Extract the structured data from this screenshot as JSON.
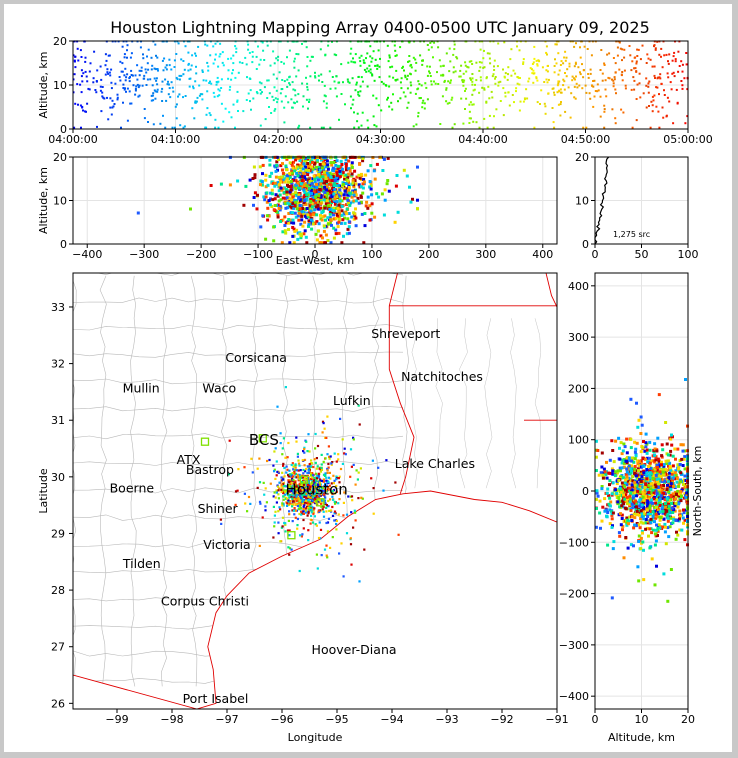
{
  "chart_data": [
    {
      "type": "scatter",
      "panel": "time-altitude",
      "title": "Houston Lightning Mapping Array 0400-0500 UTC January 09, 2025",
      "ylabel": "Altitude, km",
      "ylim": [
        0,
        20
      ],
      "yticks": [
        "0",
        "10",
        "20"
      ],
      "xlim_minutes": [
        0,
        60
      ],
      "xticks": [
        "04:00:00",
        "04:10:00",
        "04:20:00",
        "04:30:00",
        "04:40:00",
        "04:50:00",
        "05:00:00"
      ],
      "grid": true,
      "color_encoding": "time (blue to red)"
    },
    {
      "type": "scatter",
      "panel": "east-west-altitude",
      "xlabel": "East-West, km",
      "ylabel": "Altitude, km",
      "xlim": [
        -425,
        425
      ],
      "ylim": [
        0,
        20
      ],
      "xticks": [
        "−400",
        "−300",
        "−200",
        "−100",
        "0",
        "100",
        "200",
        "300",
        "400"
      ],
      "yticks": [
        "0",
        "10",
        "20"
      ],
      "grid": true
    },
    {
      "type": "line",
      "panel": "altitude-histogram",
      "xlim": [
        0,
        100
      ],
      "ylim": [
        0,
        20
      ],
      "xticks": [
        "0",
        "50",
        "100"
      ],
      "yticks": [
        "0",
        "10",
        "20"
      ],
      "annotation": "1,275 src",
      "profile": [
        [
          0.3,
          1
        ],
        [
          1,
          2
        ],
        [
          2,
          3
        ],
        [
          3,
          4
        ],
        [
          4,
          5
        ],
        [
          5,
          6
        ],
        [
          6,
          7
        ],
        [
          7,
          8
        ],
        [
          7,
          9
        ],
        [
          8,
          10
        ],
        [
          9,
          11
        ],
        [
          10,
          12
        ],
        [
          11,
          13
        ],
        [
          12,
          14
        ],
        [
          11,
          15
        ],
        [
          12,
          16
        ],
        [
          13,
          17
        ],
        [
          13,
          18
        ],
        [
          12,
          19
        ],
        [
          14,
          20
        ]
      ],
      "grid": true
    },
    {
      "type": "scatter",
      "panel": "plan-view",
      "xlabel": "Longitude",
      "ylabel": "Latitude",
      "xlim": [
        -99.8,
        -91.0
      ],
      "ylim": [
        25.9,
        33.6
      ],
      "xticks": [
        "−99",
        "−98",
        "−97",
        "−96",
        "−95",
        "−94",
        "−93",
        "−92",
        "−91"
      ],
      "yticks": [
        "26",
        "27",
        "28",
        "29",
        "30",
        "31",
        "32",
        "33"
      ],
      "cities": [
        {
          "name": "Shreveport",
          "lon": -93.75,
          "lat": 32.52,
          "color": "#000000"
        },
        {
          "name": "Corsicana",
          "lon": -96.47,
          "lat": 32.1,
          "color": "#000000"
        },
        {
          "name": "Natchitoches",
          "lon": -93.09,
          "lat": 31.76,
          "color": "#000000"
        },
        {
          "name": "Mullin",
          "lon": -98.56,
          "lat": 31.56,
          "color": "#ff8c3c"
        },
        {
          "name": "Waco",
          "lon": -97.14,
          "lat": 31.56,
          "color": "#000000"
        },
        {
          "name": "Lufkin",
          "lon": -94.73,
          "lat": 31.34,
          "color": "#000000"
        },
        {
          "name": "BCS",
          "lon": -96.33,
          "lat": 30.63,
          "color": "#000000"
        },
        {
          "name": "ATX",
          "lon": -97.7,
          "lat": 30.3,
          "color": "#ff8c3c"
        },
        {
          "name": "Lake Charles",
          "lon": -93.22,
          "lat": 30.23,
          "color": "#000000"
        },
        {
          "name": "Bastrop",
          "lon": -97.31,
          "lat": 30.12,
          "color": "#000000"
        },
        {
          "name": "Houston",
          "lon": -95.37,
          "lat": 29.76,
          "color": "#ff8c3c"
        },
        {
          "name": "Boerne",
          "lon": -98.73,
          "lat": 29.79,
          "color": "#000000"
        },
        {
          "name": "Shiner",
          "lon": -97.17,
          "lat": 29.43,
          "color": "#000000"
        },
        {
          "name": "Victoria",
          "lon": -97.0,
          "lat": 28.8,
          "color": "#000000"
        },
        {
          "name": "Tilden",
          "lon": -98.55,
          "lat": 28.46,
          "color": "#000000"
        },
        {
          "name": "Corpus Christi",
          "lon": -97.4,
          "lat": 27.8,
          "color": "#000000"
        },
        {
          "name": "Hoover-Diana",
          "lon": -94.69,
          "lat": 26.94,
          "color": "#0000ff"
        },
        {
          "name": "Port Isabel",
          "lon": -97.21,
          "lat": 26.08,
          "color": "#000000"
        }
      ],
      "stations": [
        {
          "lon": -97.4,
          "lat": 30.62
        },
        {
          "lon": -96.35,
          "lat": 30.68
        },
        {
          "lon": -95.83,
          "lat": 28.97
        },
        {
          "lon": -95.6,
          "lat": 29.95
        },
        {
          "lon": -95.3,
          "lat": 29.55
        }
      ],
      "storm_center": {
        "lon": -95.55,
        "lat": 29.75
      }
    },
    {
      "type": "scatter",
      "panel": "altitude-north-south",
      "xlabel": "Altitude, km",
      "ylabel": "North-South, km",
      "xlim": [
        0,
        20
      ],
      "ylim": [
        -425,
        425
      ],
      "xticks": [
        "0",
        "10",
        "20"
      ],
      "yticks": [
        "−400",
        "−300",
        "−200",
        "−100",
        "0",
        "100",
        "200",
        "300",
        "400"
      ],
      "grid": true
    }
  ]
}
